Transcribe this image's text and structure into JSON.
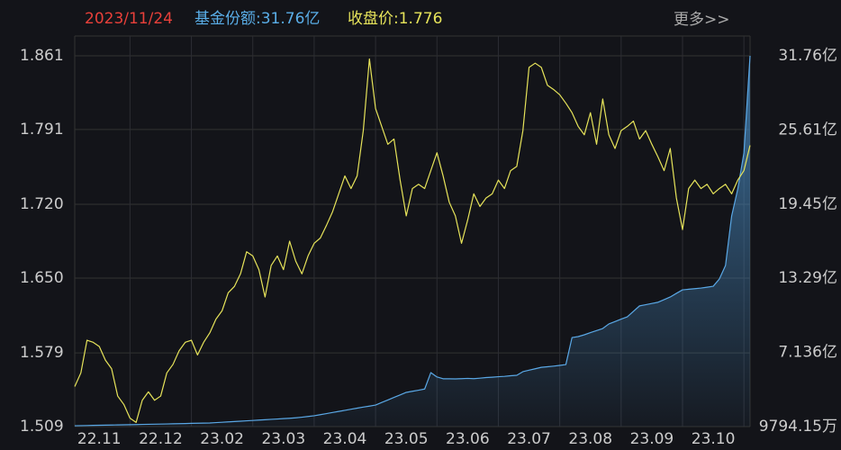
{
  "chart_data": {
    "type": "line",
    "header": {
      "date": "2023/11/24",
      "share": "基金份额:31.76亿",
      "close": "收盘价:1.776",
      "more": "更多>>"
    },
    "categories": [
      null,
      null,
      null,
      null,
      "22.11",
      null,
      null,
      null,
      null,
      null,
      null,
      null,
      null,
      null,
      "22.12",
      null,
      null,
      null,
      null,
      null,
      null,
      null,
      null,
      null,
      "23.02",
      null,
      null,
      null,
      null,
      null,
      null,
      null,
      null,
      null,
      "23.03",
      null,
      null,
      null,
      null,
      null,
      null,
      null,
      null,
      null,
      "23.04",
      null,
      null,
      null,
      null,
      null,
      null,
      null,
      null,
      null,
      "23.05",
      null,
      null,
      null,
      null,
      null,
      null,
      null,
      null,
      null,
      "23.06",
      null,
      null,
      null,
      null,
      null,
      null,
      null,
      null,
      null,
      "23.07",
      null,
      null,
      null,
      null,
      null,
      null,
      null,
      null,
      null,
      "23.08",
      null,
      null,
      null,
      null,
      null,
      null,
      null,
      null,
      null,
      "23.09",
      null,
      null,
      null,
      null,
      null,
      null,
      null,
      null,
      null,
      "23.10",
      null,
      null,
      null,
      null,
      null,
      null
    ],
    "series": [
      {
        "name": "收盘价",
        "color": "#e6e35a",
        "values": [
          1.547,
          1.56,
          1.591,
          1.589,
          1.585,
          1.572,
          1.564,
          1.538,
          1.53,
          1.517,
          1.513,
          1.534,
          1.542,
          1.534,
          1.538,
          1.56,
          1.568,
          1.581,
          1.589,
          1.591,
          1.577,
          1.589,
          1.598,
          1.611,
          1.619,
          1.636,
          1.642,
          1.654,
          1.675,
          1.671,
          1.658,
          1.632,
          1.662,
          1.671,
          1.658,
          1.685,
          1.666,
          1.654,
          1.671,
          1.683,
          1.688,
          1.7,
          1.713,
          1.73,
          1.747,
          1.735,
          1.747,
          1.79,
          1.858,
          1.811,
          1.794,
          1.777,
          1.782,
          1.743,
          1.709,
          1.735,
          1.739,
          1.735,
          1.752,
          1.769,
          1.747,
          1.722,
          1.709,
          1.683,
          1.705,
          1.73,
          1.718,
          1.726,
          1.73,
          1.743,
          1.735,
          1.752,
          1.756,
          1.79,
          1.85,
          1.854,
          1.85,
          1.833,
          1.829,
          1.824,
          1.816,
          1.807,
          1.794,
          1.786,
          1.807,
          1.777,
          1.82,
          1.786,
          1.773,
          1.79,
          1.794,
          1.799,
          1.782,
          1.79,
          1.777,
          1.765,
          1.752,
          1.773,
          1.726,
          1.696,
          1.735,
          1.743,
          1.735,
          1.739,
          1.73,
          1.735,
          1.739,
          1.73,
          1.743,
          1.752,
          1.776
        ]
      },
      {
        "name": "基金份额",
        "color": "#5aa8e6",
        "axis": "y2",
        "fill": true,
        "values": [
          1.05,
          1.06,
          1.07,
          1.08,
          1.09,
          1.1,
          1.11,
          1.12,
          1.13,
          1.14,
          1.15,
          1.16,
          1.17,
          1.18,
          1.19,
          1.2,
          1.21,
          1.22,
          1.23,
          1.25,
          1.26,
          1.27,
          1.28,
          1.31,
          1.34,
          1.37,
          1.4,
          1.43,
          1.46,
          1.49,
          1.52,
          1.55,
          1.58,
          1.61,
          1.64,
          1.67,
          1.71,
          1.76,
          1.82,
          1.88,
          1.97,
          2.06,
          2.15,
          2.24,
          2.33,
          2.42,
          2.51,
          2.6,
          2.68,
          2.77,
          2.98,
          3.19,
          3.4,
          3.61,
          3.82,
          3.91,
          4.0,
          4.1,
          5.46,
          5.1,
          4.95,
          4.95,
          4.94,
          4.96,
          4.98,
          4.96,
          5.0,
          5.05,
          5.08,
          5.12,
          5.15,
          5.2,
          5.24,
          5.54,
          5.66,
          5.78,
          5.9,
          5.95,
          6.0,
          6.06,
          6.13,
          8.37,
          8.45,
          8.6,
          8.78,
          8.95,
          9.12,
          9.5,
          9.7,
          9.9,
          10.09,
          10.55,
          11.0,
          11.1,
          11.2,
          11.3,
          11.52,
          11.74,
          12.04,
          12.33,
          12.38,
          12.43,
          12.48,
          12.55,
          12.63,
          13.23,
          14.35,
          18.46,
          20.7,
          23.69,
          31.76
        ]
      }
    ],
    "ylim": [
      1.509,
      1.861
    ],
    "yticks": [
      1.509,
      1.579,
      {
        "value": 1.65,
        "label": "1.650"
      },
      {
        "value": 1.72,
        "label": "1.720"
      },
      1.791,
      1.861
    ],
    "y2lim": [
      0.979415,
      31.76
    ],
    "y2ticks": [
      {
        "value": 0.979415,
        "label": "9794.15万"
      },
      {
        "value": 7.136,
        "label": "7.136亿"
      },
      {
        "value": 13.29,
        "label": "13.29亿"
      },
      {
        "value": 19.45,
        "label": "19.45亿"
      },
      {
        "value": 25.61,
        "label": "25.61亿"
      },
      {
        "value": 31.76,
        "label": "31.76亿"
      }
    ],
    "grid": true
  }
}
